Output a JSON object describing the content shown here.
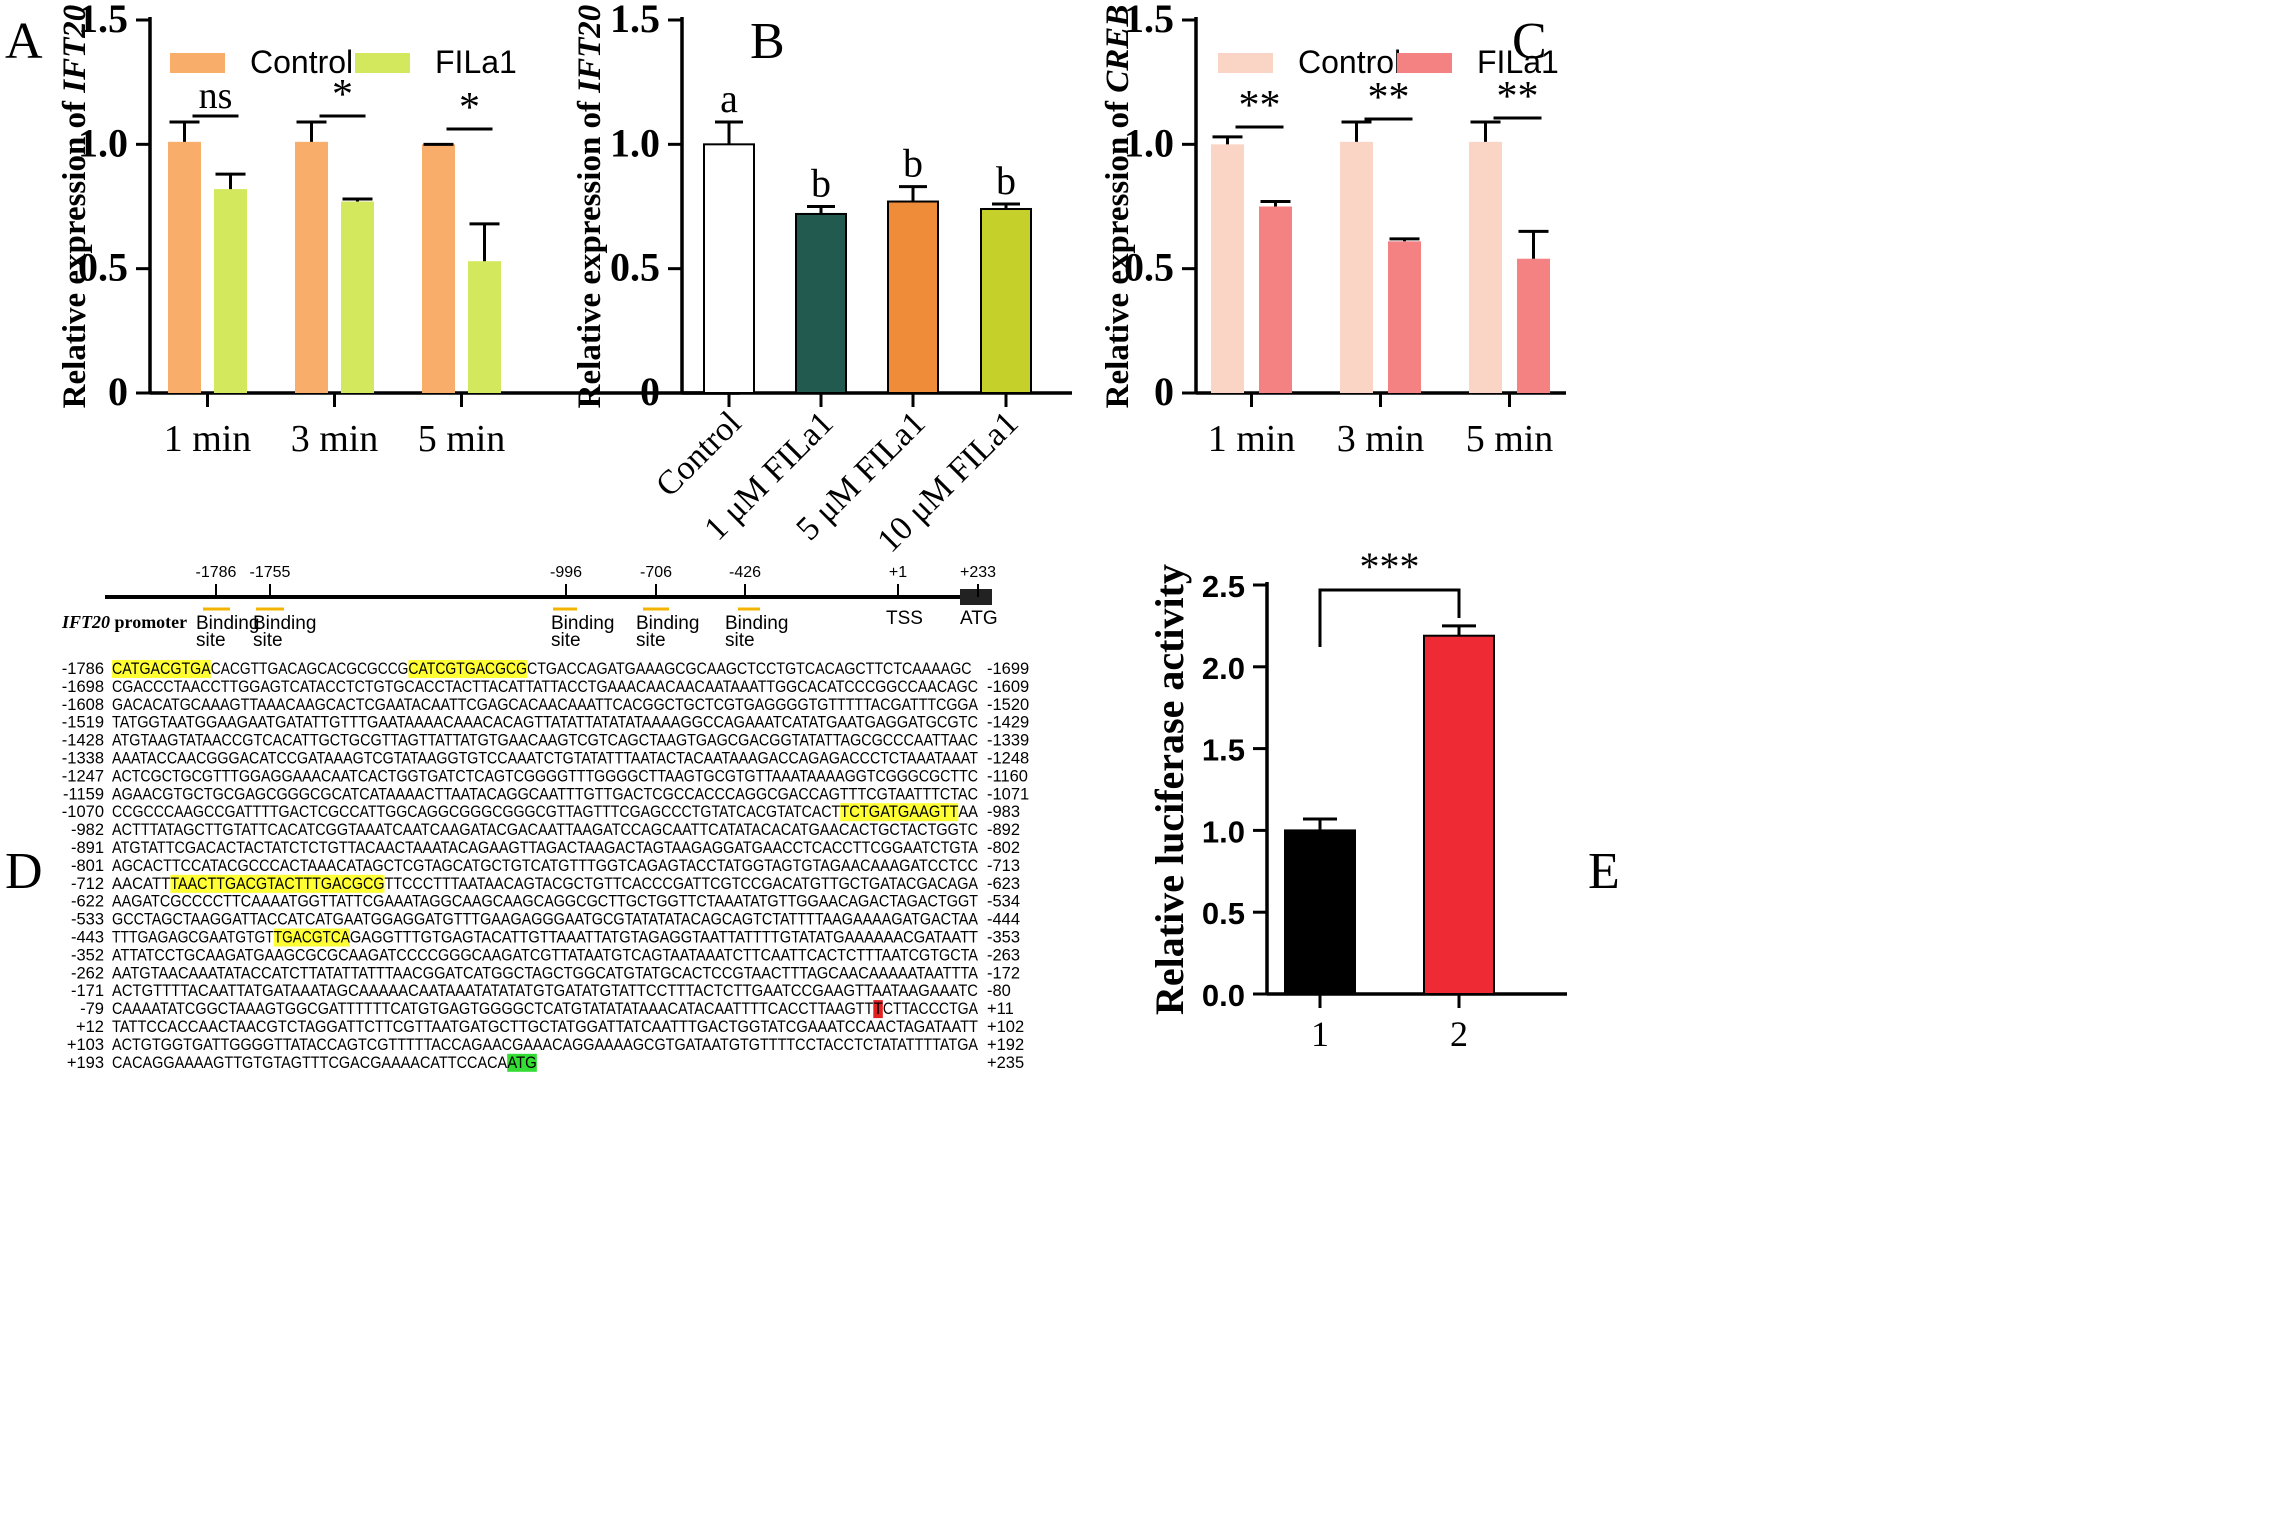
{
  "panels": {
    "A": "A",
    "B": "B",
    "C": "C",
    "D": "D",
    "E": "E"
  },
  "colors": {
    "control_A": "#F8AD6A",
    "fila1_A": "#D4E85E",
    "b0": "#FFFFFF",
    "b1": "#235A50",
    "b2": "#EF8C3A",
    "b3": "#C5D12A",
    "control_C": "#FAD5C6",
    "fila1_C": "#F58282",
    "e1": "#000000",
    "e2": "#EE2A35",
    "highlight": "#FFFF33",
    "tss": "#E32020",
    "atg": "#33DD33"
  },
  "chart_data": [
    {
      "id": "A",
      "type": "bar",
      "ylabel_prefix": "Relative expression of ",
      "ylabel_gene": "IFT20",
      "ylim": [
        0,
        1.5
      ],
      "yticks": [
        "0",
        "0.5",
        "1.0",
        "1.5"
      ],
      "yticks_values": [
        0,
        0.5,
        1.0,
        1.5
      ],
      "categories": [
        "1 min",
        "3 min",
        "5 min"
      ],
      "series": [
        {
          "name": "Control",
          "values": [
            1.01,
            1.01,
            1.0
          ],
          "errors": [
            0.08,
            0.08,
            0.0
          ]
        },
        {
          "name": "FILa1",
          "values": [
            0.82,
            0.77,
            0.53
          ],
          "errors": [
            0.06,
            0.01,
            0.15
          ]
        }
      ],
      "legend": [
        "Control",
        "FILa1"
      ],
      "significance": [
        "ns",
        "*",
        "*"
      ]
    },
    {
      "id": "B",
      "type": "bar",
      "ylabel_prefix": "Relative expression of ",
      "ylabel_gene": "IFT20",
      "ylim": [
        0,
        1.5
      ],
      "yticks": [
        "0",
        "0.5",
        "1.0",
        "1.5"
      ],
      "yticks_values": [
        0,
        0.5,
        1.0,
        1.5
      ],
      "categories": [
        "Control",
        "1 μM FILa1",
        "5 μM FILa1",
        "10 μM FILa1"
      ],
      "values": [
        1.0,
        0.72,
        0.77,
        0.74
      ],
      "errors": [
        0.09,
        0.03,
        0.06,
        0.02
      ],
      "letters": [
        "a",
        "b",
        "b",
        "b"
      ]
    },
    {
      "id": "C",
      "type": "bar",
      "ylabel_prefix": "Relative expression of ",
      "ylabel_gene": "CREB",
      "ylim": [
        0,
        1.5
      ],
      "yticks": [
        "0",
        "0.5",
        "1.0",
        "1.5"
      ],
      "yticks_values": [
        0,
        0.5,
        1.0,
        1.5
      ],
      "categories": [
        "1 min",
        "3 min",
        "5 min"
      ],
      "series": [
        {
          "name": "Control",
          "values": [
            1.0,
            1.01,
            1.01
          ],
          "errors": [
            0.03,
            0.08,
            0.08
          ]
        },
        {
          "name": "FILa1",
          "values": [
            0.75,
            0.61,
            0.54
          ],
          "errors": [
            0.02,
            0.01,
            0.11
          ]
        }
      ],
      "legend": [
        "Control",
        "FILa1"
      ],
      "significance": [
        "**",
        "**",
        "**"
      ]
    },
    {
      "id": "E",
      "type": "bar",
      "ylabel": "Relative luciferase activity",
      "ylim": [
        0,
        2.5
      ],
      "yticks": [
        "0.0",
        "0.5",
        "1.0",
        "1.5",
        "2.0",
        "2.5"
      ],
      "yticks_values": [
        0,
        0.5,
        1.0,
        1.5,
        2.0,
        2.5
      ],
      "categories": [
        "1",
        "2"
      ],
      "values": [
        1.0,
        2.19
      ],
      "errors": [
        0.07,
        0.06
      ],
      "significance": "***"
    }
  ],
  "promoter": {
    "label": "IFT20 promoter",
    "ticks": [
      "-1786",
      "-1755",
      "-996",
      "-706",
      "-426",
      "+1",
      "+233"
    ],
    "sites": [
      "Binding site",
      "Binding site",
      "Binding site",
      "Binding site",
      "Binding site"
    ],
    "tss": "TSS",
    "atg": "ATG",
    "lines": [
      {
        "l": "-1786",
        "r": "-1699",
        "s": [
          [
            "CATGACGTGA",
            "h"
          ],
          [
            "CACGTTGACAGCACGCGCCG",
            ""
          ],
          [
            "CATCGTGACGCG",
            "h"
          ],
          [
            "CTGACCAGATGAAAGCGCAAGCTCCTGTCACAGCTTCTCAAAAGC",
            ""
          ]
        ]
      },
      {
        "l": "-1698",
        "r": "-1609",
        "s": [
          [
            "CGACCCTAACCTTGGAGTCATACCTCTGTGCACCTACTTACATTATTACCTGAAACAACAACAATAAATTGGCACATCCCGGCCAACAGC",
            ""
          ]
        ]
      },
      {
        "l": "-1608",
        "r": "-1520",
        "s": [
          [
            "GACACATGCAAAGTTAAACAAGCACTCGAATACAATTCGAGCACAACAAATTCACGGCTGCTCGTGAGGGGTGTTTTTACGATTTCGGA",
            ""
          ]
        ]
      },
      {
        "l": "-1519",
        "r": "-1429",
        "s": [
          [
            "TATGGTAATGGAAGAATGATATTGTTTGAATAAAACAAACACAGTTATATTATATATAAAAGGCCAGAAATCATATGAATGAGGATGCGTC",
            ""
          ]
        ]
      },
      {
        "l": "-1428",
        "r": "-1339",
        "s": [
          [
            "ATGTAAGTATAACCGTCACATTGCTGCGTTAGTTATTATGTGAACAAGTCGTCAGCTAAGTGAGCGACGGTATATTAGCGCCCAATTAAC",
            ""
          ]
        ]
      },
      {
        "l": "-1338",
        "r": "-1248",
        "s": [
          [
            "AAATACCAACGGGACATCCGATAAAGTCGTATAAGGTGTCCAAATCTGTATATTTAATACTACAATAAAGACCAGAGACCCTCTAAATAAAT",
            ""
          ]
        ]
      },
      {
        "l": "-1247",
        "r": "-1160",
        "s": [
          [
            "ACTCGCTGCGTTTGGAGGAAACAATCACTGGTGATCTCAGTCGGGGTTTGGGGCTTAAGTGCGTGTTAAATAAAAGGTCGGGCGCTTC",
            ""
          ]
        ]
      },
      {
        "l": "-1159",
        "r": "-1071",
        "s": [
          [
            "AGAACGTGCTGCGAGCGGGCGCATCATAAAACTTAATACAGGCAATTTGTTGACTCGCCACCCAGGCGACCAGTTTCGTAATTTCTAC",
            ""
          ]
        ]
      },
      {
        "l": "-1070",
        "r": "-983",
        "s": [
          [
            "CCGCCCAAGCCGATTTTGACTCGCCATTGGCAGGCGGGCGGGCGTTAGTTTCGAGCCCTGTATCACGTATCACT",
            ""
          ],
          [
            "TCTGATGAAGTT",
            "h"
          ],
          [
            "AA",
            ""
          ]
        ]
      },
      {
        "l": "-982",
        "r": "-892",
        "s": [
          [
            "ACTTTATAGCTTGTATTCACATCGGTAAATCAATCAAGATACGACAATTAAGATCCAGCAATTCATATACACATGAACACTGCTACTGGTC",
            ""
          ]
        ]
      },
      {
        "l": "-891",
        "r": "-802",
        "s": [
          [
            "ATGTATTCGACACTACTATCTCTGTTACAACTAAATACAGAAGTTAGACTAAGACTAGTAAGAGGATGAACCTCACCTTCGGAATCTGTA",
            ""
          ]
        ]
      },
      {
        "l": "-801",
        "r": "-713",
        "s": [
          [
            "AGCACTTCCATACGCCCACTAAACATAGCTCGTAGCATGCTGTCATGTTTGGTCAGAGTACCTATGGTAGTGTAGAACAAAGATCCTCC",
            ""
          ]
        ]
      },
      {
        "l": "-712",
        "r": "-623",
        "s": [
          [
            "AACATT",
            ""
          ],
          [
            "TAACTTGACGTACTTTGACGCG",
            "h"
          ],
          [
            "TTCCCTTTAATAACAGTACGCTGTTCACCCGATTCGTCCGACATGTTGCTGATACGACAGA",
            ""
          ]
        ]
      },
      {
        "l": "-622",
        "r": "-534",
        "s": [
          [
            "AAGATCGCCCCTTCAAAATGGTTATTCGAAATAGGCAAGCAAGCAGGCGCTTGCTGGTTCTAAATATGTTGGAACAGACTAGACTGGT",
            ""
          ]
        ]
      },
      {
        "l": "-533",
        "r": "-444",
        "s": [
          [
            "GCCTAGCTAAGGATTACCATCATGAATGGAGGATGTTTGAAGAGGGAATGCGTATATATACAGCAGTCTATTTTAAGAAAAGATGACTAA",
            ""
          ]
        ]
      },
      {
        "l": "-443",
        "r": "-353",
        "s": [
          [
            "TTTGAGAGCGAATGTGT",
            ""
          ],
          [
            "TGACGTCA",
            "h"
          ],
          [
            "GAGGTTTGTGAGTACATTGTTAAATTATGTAGAGGTAATTATTTTGTATATGAAAAAACGATAATT",
            ""
          ]
        ]
      },
      {
        "l": "-352",
        "r": "-263",
        "s": [
          [
            "ATTATCCTGCAAGATGAAGCGCGCAAGATCCCCGGGCAAGATCGTTATAATGTCAGTAATAAATCTTCAATTCACTCTTTAATCGTGCTA",
            ""
          ]
        ]
      },
      {
        "l": "-262",
        "r": "-172",
        "s": [
          [
            "AATGTAACAAATATACCATCTTATATTATTTAACGGATCATGGCTAGCTGGCATGTATGCACTCCGTAACTTTAGCAACAAAAATAATTTA",
            ""
          ]
        ]
      },
      {
        "l": "-171",
        "r": "-80",
        "s": [
          [
            "ACTGTTTTACAATTATGATAAATAGCAAAAACAATAAATATATATGTGATATGTATTCCTTTACTCTTGAATCCGAAGTTAATAAGAAATC",
            ""
          ]
        ]
      },
      {
        "l": "-79",
        "r": "+11",
        "s": [
          [
            "CAAAATATCGGCTAAAGTGGCGATTTTTTCATGTGAGTGGGGCTCATGTATATATAAACATACAATTTTCACCTTAAGTT",
            ""
          ],
          [
            "T",
            "t"
          ],
          [
            "CTTACCCTGA",
            ""
          ]
        ]
      },
      {
        "l": "+12",
        "r": "+102",
        "s": [
          [
            "TATTCCACCAACTAACGTCTAGGATTCTTCGTTAATGATGCTTGCTATGGATTATCAATTTGACTGGTATCGAAATCCAACTAGATAATT",
            ""
          ]
        ]
      },
      {
        "l": "+103",
        "r": "+192",
        "s": [
          [
            "ACTGTGGTGATTGGGGTTATACCAGTCGTTTTTACCAGAACGAAACAGGAAAAGCGTGATAATGTGTTTTCCTACCTCTATATTTTATGA",
            ""
          ]
        ]
      },
      {
        "l": "+193",
        "r": "+235",
        "s": [
          [
            "CACAGGAAAAGTTGTGTAGTTTCGACGAAAACATTCCACA",
            ""
          ],
          [
            "ATG",
            "a"
          ]
        ]
      }
    ]
  }
}
